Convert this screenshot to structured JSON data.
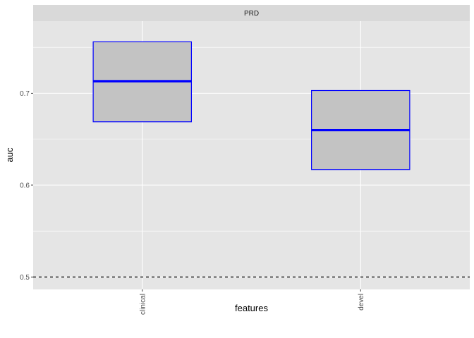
{
  "chart_data": {
    "type": "boxplot",
    "facet": "PRD",
    "xlabel": "features",
    "ylabel": "auc",
    "categories": [
      "clinical",
      "devel"
    ],
    "boxes": [
      {
        "category": "clinical",
        "lower": 0.669,
        "median": 0.713,
        "upper": 0.756
      },
      {
        "category": "devel",
        "lower": 0.617,
        "median": 0.66,
        "upper": 0.703
      }
    ],
    "reference_line": 0.5,
    "yticks": [
      "0.5",
      "0.6",
      "0.7"
    ],
    "yticks_values": [
      0.5,
      0.6,
      0.7
    ],
    "ylim": [
      0.4865,
      0.7785
    ],
    "grid": true,
    "colors": {
      "panel_bg": "#e5e5e5",
      "strip_bg": "#d9d9d9",
      "box_fill": "#c3c3c3",
      "box_outline": "#0000ff",
      "median_line": "#0000ff",
      "grid": "#ffffff",
      "reference_line": "#000000"
    }
  }
}
